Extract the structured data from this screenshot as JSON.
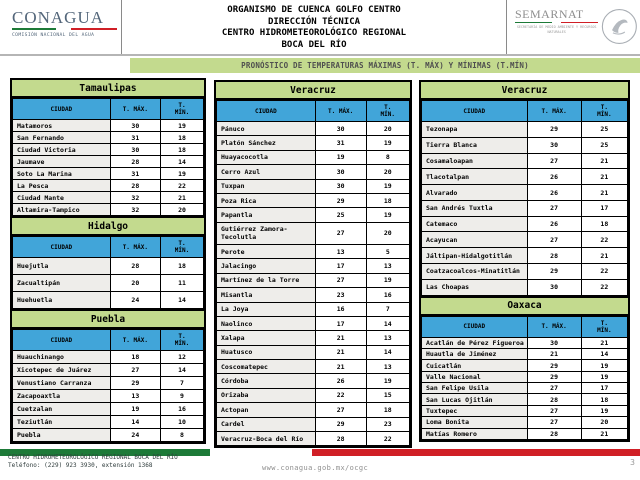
{
  "colors": {
    "header_green": "#c3da8e",
    "header_blue": "#41a5d9",
    "flag_green": "#1d7a38",
    "flag_red": "#d01f26"
  },
  "header": {
    "conagua": {
      "title": "CONAGUA",
      "subtitle": "COMISIÓN NACIONAL DEL AGUA"
    },
    "org_lines": {
      "0": "ORGANISMO DE CUENCA GOLFO CENTRO",
      "1": "DIRECCIÓN TÉCNICA",
      "2": "CENTRO HIDROMETEOROLÓGICO REGIONAL",
      "3": "BOCA DEL RÍO"
    },
    "semarnat": {
      "title": "SEMARNAT",
      "subtitle": "SECRETARÍA DE MEDIO AMBIENTE Y RECURSOS NATURALES"
    }
  },
  "banner": {
    "text": "PRONÓSTICO DE TEMPERATURAS MÁXIMAS (T. MÁX) Y MÍNIMAS (T.MÍN)"
  },
  "columns": [
    [
      {
        "state": "Tamaulipas",
        "headers": {
          "city": "CIUDAD",
          "tmax": "T. MÁX.",
          "tmin": "T.\nMÍN."
        },
        "rows": [
          [
            "Matamoros",
            "30",
            "19"
          ],
          [
            "San Fernando",
            "31",
            "18"
          ],
          [
            "Ciudad Victoria",
            "30",
            "18"
          ],
          [
            "Jaumave",
            "28",
            "14"
          ],
          [
            "Soto La Marina",
            "31",
            "19"
          ],
          [
            "La Pesca",
            "28",
            "22"
          ],
          [
            "Ciudad Mante",
            "32",
            "21"
          ],
          [
            "Altamira-Tampico",
            "32",
            "20"
          ]
        ]
      },
      {
        "state": "Hidalgo",
        "headers": {
          "city": "CIUDAD",
          "tmax": "T. MÁX.",
          "tmin": "T.\nMÍN."
        },
        "rows": [
          [
            "Huejutla",
            "28",
            "18"
          ],
          [
            "Zacualtipán",
            "20",
            "11"
          ],
          [
            "Huehuetla",
            "24",
            "14"
          ]
        ]
      },
      {
        "state": "Puebla",
        "headers": {
          "city": "CIUDAD",
          "tmax": "T. MÁX.",
          "tmin": "T.\nMÍN."
        },
        "rows": [
          [
            "Huauchinango",
            "18",
            "12"
          ],
          [
            "Xicotepec de Juárez",
            "27",
            "14"
          ],
          [
            "Venustiano Carranza",
            "29",
            "7"
          ],
          [
            "Zacapoaxtla",
            "13",
            "9"
          ],
          [
            "Cuetzalan",
            "19",
            "16"
          ],
          [
            "Teziutlán",
            "14",
            "10"
          ],
          [
            "Puebla",
            "24",
            "8"
          ]
        ]
      }
    ],
    [
      {
        "state": "Veracruz",
        "headers": {
          "city": "CIUDAD",
          "tmax": "T. MÁX.",
          "tmin": "T.\nMÍN."
        },
        "rows": [
          [
            "Pánuco",
            "30",
            "20"
          ],
          [
            "Platón Sánchez",
            "31",
            "19"
          ],
          [
            "Huayacocotla",
            "19",
            "8"
          ],
          [
            "Cerro Azul",
            "30",
            "20"
          ],
          [
            "Tuxpan",
            "30",
            "19"
          ],
          [
            "Poza Rica",
            "29",
            "18"
          ],
          [
            "Papantla",
            "25",
            "19"
          ],
          [
            "Gutiérrez Zamora-Tecolutla",
            "27",
            "20"
          ],
          [
            "Perote",
            "13",
            "5"
          ],
          [
            "Jalacingo",
            "17",
            "13"
          ],
          [
            "Martínez de la Torre",
            "27",
            "19"
          ],
          [
            "Misantla",
            "23",
            "16"
          ],
          [
            "La Joya",
            "16",
            "7"
          ],
          [
            "Naolinco",
            "17",
            "14"
          ],
          [
            "Xalapa",
            "21",
            "13"
          ],
          [
            "Huatusco",
            "21",
            "14"
          ],
          [
            "Coscomatepec",
            "21",
            "13"
          ],
          [
            "Córdoba",
            "26",
            "19"
          ],
          [
            "Orizaba",
            "22",
            "15"
          ],
          [
            "Actopan",
            "27",
            "18"
          ],
          [
            "Cardel",
            "29",
            "23"
          ],
          [
            "Veracruz-Boca del Río",
            "28",
            "22"
          ]
        ]
      }
    ],
    [
      {
        "state": "Veracruz",
        "headers": {
          "city": "CIUDAD",
          "tmax": "T. MÁX.",
          "tmin": "T.\nMÍN."
        },
        "rows": [
          [
            "Tezonapa",
            "29",
            "25"
          ],
          [
            "Tierra Blanca",
            "30",
            "25"
          ],
          [
            "Cosamaloapan",
            "27",
            "21"
          ],
          [
            "Tlacotalpan",
            "26",
            "21"
          ],
          [
            "Alvarado",
            "26",
            "21"
          ],
          [
            "San Andrés Tuxtla",
            "27",
            "17"
          ],
          [
            "Catemaco",
            "26",
            "18"
          ],
          [
            "Acayucan",
            "27",
            "22"
          ],
          [
            "Jáltipan-Hidalgotitlán",
            "28",
            "21"
          ],
          [
            "Coatzacoalcos-Minatitlán",
            "29",
            "22"
          ],
          [
            "Las Choapas",
            "30",
            "22"
          ]
        ]
      },
      {
        "state": "Oaxaca",
        "headers": {
          "city": "CIUDAD",
          "tmax": "T. MÁX.",
          "tmin": "T.\nMÍN."
        },
        "rows": [
          [
            "Acatlán de Pérez Figueroa",
            "30",
            "21"
          ],
          [
            "Huautla de Jiménez",
            "21",
            "14"
          ],
          [
            "Cuicatlán",
            "29",
            "19"
          ],
          [
            "Valle Nacional",
            "29",
            "19"
          ],
          [
            "San Felipe Usila",
            "27",
            "17"
          ],
          [
            "San Lucas Ojitlán",
            "28",
            "18"
          ],
          [
            "Tuxtepec",
            "27",
            "19"
          ],
          [
            "Loma Bonita",
            "27",
            "20"
          ],
          [
            "Matías Romero",
            "28",
            "21"
          ]
        ]
      }
    ]
  ],
  "footer": {
    "center_name": "CENTRO HIDROMETEOROLÓGICO REGIONAL BOCA DEL RÍO",
    "phone": "Teléfono: (229) 923 3930, extensión 1368",
    "url": "www.conagua.gob.mx/ocgc",
    "page_number": "3"
  }
}
